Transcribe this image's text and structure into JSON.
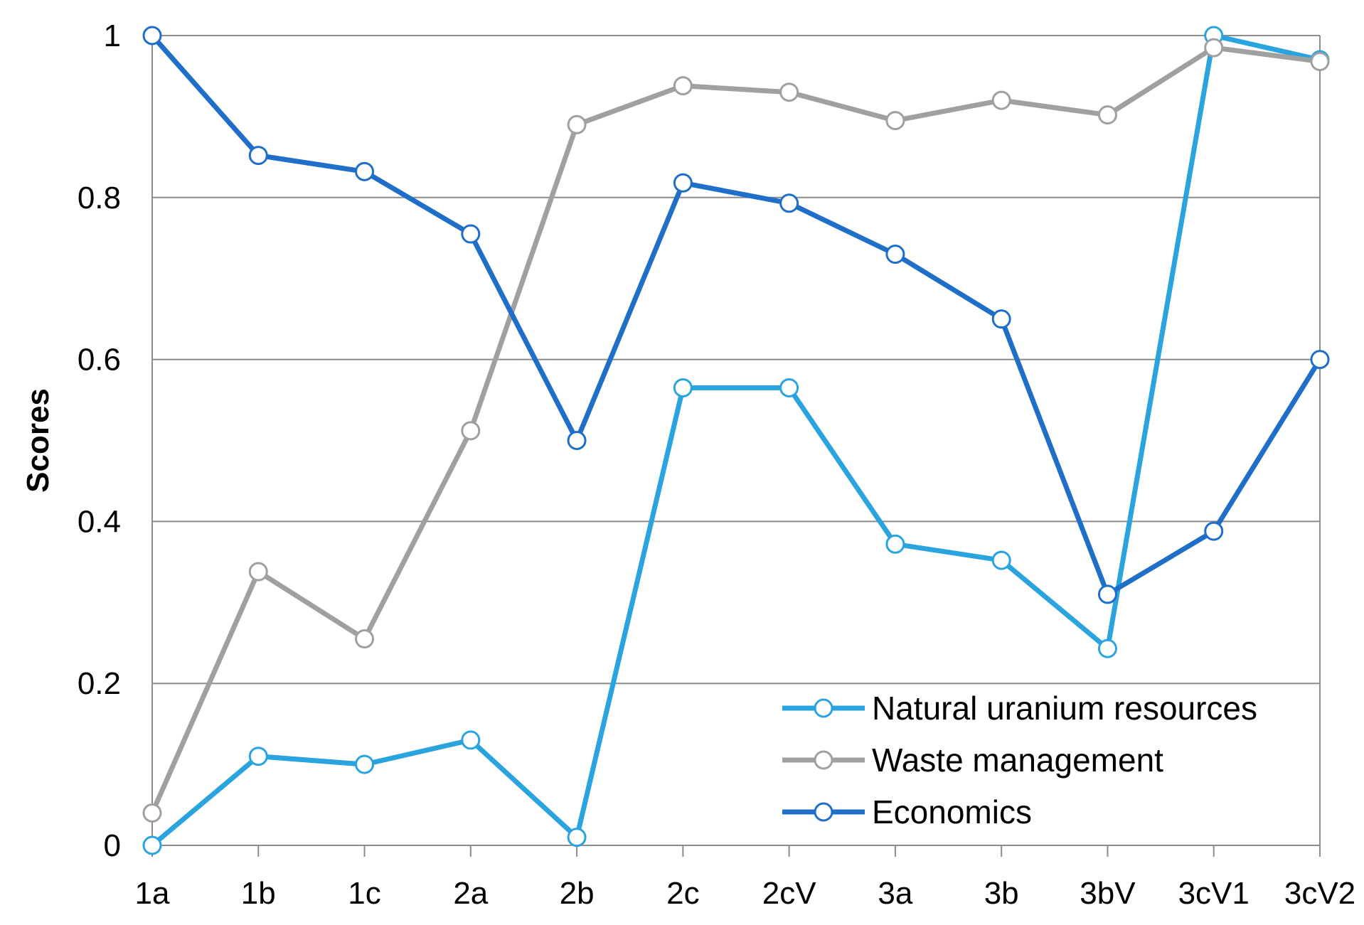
{
  "chart_data": {
    "type": "line",
    "title": "",
    "xlabel": "",
    "ylabel": "Scores",
    "ylim": [
      0,
      1
    ],
    "yticks": [
      "0",
      "0.2",
      "0.4",
      "0.6",
      "0.8",
      "1"
    ],
    "ytick_values": [
      0,
      0.2,
      0.4,
      0.6,
      0.8,
      1
    ],
    "grid": "horizontal",
    "legend_position": "bottom-right",
    "categories": [
      "1a",
      "1b",
      "1c",
      "2a",
      "2b",
      "2c",
      "2cV",
      "3a",
      "3b",
      "3bV",
      "3cV1",
      "3cV2"
    ],
    "series": [
      {
        "name": "Natural uranium resources",
        "color": "#2AA4DE",
        "values": [
          0.0,
          0.11,
          0.1,
          0.13,
          0.01,
          0.565,
          0.565,
          0.372,
          0.352,
          0.243,
          1.0,
          0.97
        ]
      },
      {
        "name": "Waste management",
        "color": "#A0A0A0",
        "values": [
          0.04,
          0.338,
          0.255,
          0.512,
          0.89,
          0.938,
          0.93,
          0.895,
          0.92,
          0.902,
          0.985,
          0.968
        ]
      },
      {
        "name": "Economics",
        "color": "#1F6FC9",
        "values": [
          1.0,
          0.852,
          0.832,
          0.755,
          0.5,
          0.818,
          0.793,
          0.73,
          0.65,
          0.31,
          0.388,
          0.6
        ]
      }
    ]
  }
}
